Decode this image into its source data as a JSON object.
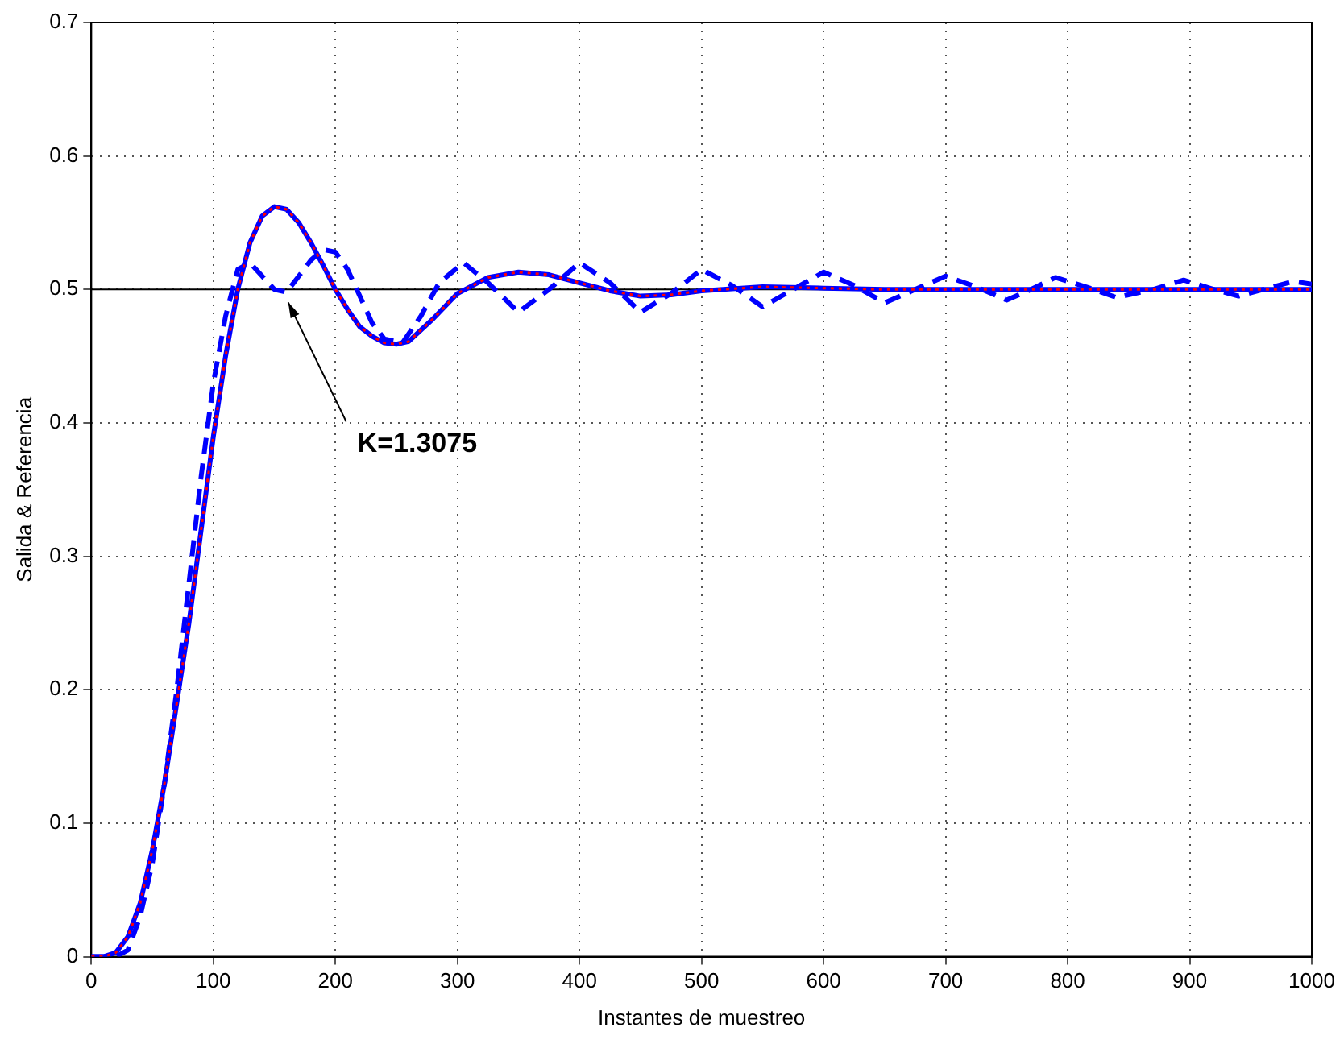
{
  "chart_data": {
    "type": "line",
    "xlabel": "Instantes de muestreo",
    "ylabel": "Salida & Referencia",
    "xlim": [
      0,
      1000
    ],
    "xticks": [
      0,
      100,
      200,
      300,
      400,
      500,
      600,
      700,
      800,
      900,
      1000
    ],
    "ylim": [
      0,
      0.7
    ],
    "yticks": [
      0,
      0.1,
      0.2,
      0.3,
      0.4,
      0.5,
      0.6,
      0.7
    ],
    "grid": true,
    "legend": false,
    "marker": "none",
    "ref_lines": [
      {
        "axis": "y",
        "value": 0.5,
        "color": "#000000",
        "line_style": "solid"
      }
    ],
    "annotations": [
      {
        "text": "K=1.3075",
        "x": 160,
        "y": 0.5
      }
    ],
    "series": [
      {
        "color": "#0000ff",
        "line_style": "dashed",
        "x": [
          0,
          10,
          20,
          30,
          40,
          50,
          60,
          70,
          80,
          90,
          100,
          110,
          120,
          130,
          140,
          150,
          160,
          170,
          180,
          190,
          200,
          210,
          220,
          230,
          240,
          255,
          270,
          285,
          305,
          325,
          350,
          375,
          400,
          425,
          450,
          475,
          500,
          525,
          550,
          575,
          600,
          625,
          650,
          675,
          700,
          725,
          750,
          770,
          790,
          815,
          840,
          870,
          895,
          920,
          940,
          960,
          985,
          1000
        ],
        "values": [
          0,
          0,
          0,
          0.005,
          0.03,
          0.07,
          0.13,
          0.2,
          0.28,
          0.36,
          0.43,
          0.48,
          0.515,
          0.52,
          0.51,
          0.5,
          0.498,
          0.51,
          0.522,
          0.53,
          0.528,
          0.515,
          0.495,
          0.475,
          0.463,
          0.46,
          0.48,
          0.505,
          0.52,
          0.505,
          0.483,
          0.5,
          0.52,
          0.505,
          0.483,
          0.497,
          0.515,
          0.503,
          0.487,
          0.5,
          0.513,
          0.503,
          0.49,
          0.5,
          0.51,
          0.502,
          0.492,
          0.5,
          0.509,
          0.502,
          0.494,
          0.5,
          0.507,
          0.5,
          0.495,
          0.5,
          0.506,
          0.504
        ]
      },
      {
        "color": "#0000ff",
        "line_style": "solid",
        "x": [
          0,
          10,
          20,
          30,
          40,
          50,
          60,
          70,
          80,
          90,
          100,
          110,
          120,
          130,
          140,
          150,
          160,
          170,
          180,
          190,
          200,
          210,
          220,
          230,
          240,
          250,
          260,
          280,
          300,
          325,
          350,
          375,
          400,
          425,
          450,
          475,
          500,
          550,
          600,
          650,
          700,
          800,
          900,
          1000
        ],
        "values": [
          0,
          0,
          0.003,
          0.015,
          0.04,
          0.08,
          0.13,
          0.19,
          0.25,
          0.32,
          0.39,
          0.45,
          0.5,
          0.535,
          0.555,
          0.562,
          0.56,
          0.55,
          0.535,
          0.518,
          0.5,
          0.485,
          0.472,
          0.465,
          0.46,
          0.459,
          0.461,
          0.478,
          0.497,
          0.509,
          0.513,
          0.511,
          0.505,
          0.499,
          0.495,
          0.496,
          0.499,
          0.502,
          0.501,
          0.5,
          0.5,
          0.5,
          0.5,
          0.5
        ]
      },
      {
        "color": "#ff0000",
        "line_style": "dotted",
        "x": [
          0,
          10,
          20,
          30,
          40,
          50,
          60,
          70,
          80,
          90,
          100,
          110,
          120,
          130,
          140,
          150,
          160,
          170,
          180,
          190,
          200,
          210,
          220,
          230,
          240,
          250,
          260,
          280,
          300,
          325,
          350,
          375,
          400,
          425,
          450,
          475,
          500,
          550,
          600,
          650,
          700,
          800,
          900,
          1000
        ],
        "values": [
          0,
          0,
          0.003,
          0.015,
          0.04,
          0.08,
          0.13,
          0.19,
          0.25,
          0.32,
          0.39,
          0.45,
          0.5,
          0.535,
          0.555,
          0.562,
          0.56,
          0.55,
          0.535,
          0.518,
          0.5,
          0.485,
          0.472,
          0.465,
          0.46,
          0.459,
          0.461,
          0.478,
          0.497,
          0.509,
          0.513,
          0.511,
          0.505,
          0.499,
          0.495,
          0.496,
          0.499,
          0.502,
          0.501,
          0.5,
          0.5,
          0.5,
          0.5,
          0.5
        ]
      }
    ]
  }
}
